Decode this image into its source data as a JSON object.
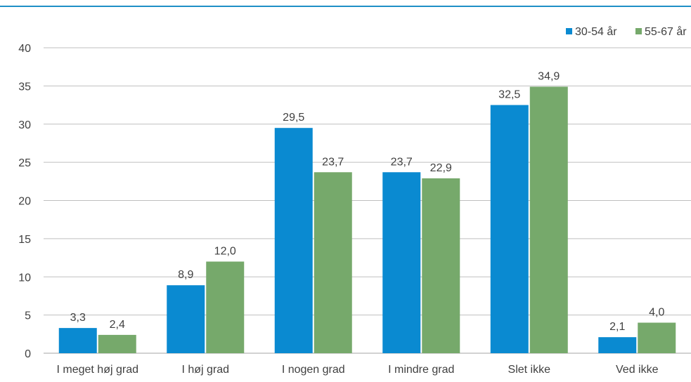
{
  "colors": {
    "top_rule": "#1f8fc6",
    "grid": "#bfbfbf",
    "axis": "#a6a6a6"
  },
  "chart_data": {
    "type": "bar",
    "categories": [
      "I meget høj grad",
      "I høj grad",
      "I nogen grad",
      "I mindre grad",
      "Slet ikke",
      "Ved ikke"
    ],
    "series": [
      {
        "name": "30-54 år",
        "color": "#0a8ad1",
        "values": [
          3.3,
          8.9,
          29.5,
          23.7,
          32.5,
          2.1
        ],
        "labels": [
          "3,3",
          "8,9",
          "29,5",
          "23,7",
          "32,5",
          "2,1"
        ]
      },
      {
        "name": "55-67 år",
        "color": "#76a96b",
        "values": [
          2.4,
          12.0,
          23.7,
          22.9,
          34.9,
          4.0
        ],
        "labels": [
          "2,4",
          "12,0",
          "23,7",
          "22,9",
          "34,9",
          "4,0"
        ]
      }
    ],
    "yticks": [
      "0",
      "5",
      "10",
      "15",
      "20",
      "25",
      "30",
      "35",
      "40"
    ],
    "ylim": [
      0,
      40
    ],
    "grid": true,
    "legend": "top-right",
    "title": "",
    "xlabel": "",
    "ylabel": ""
  }
}
